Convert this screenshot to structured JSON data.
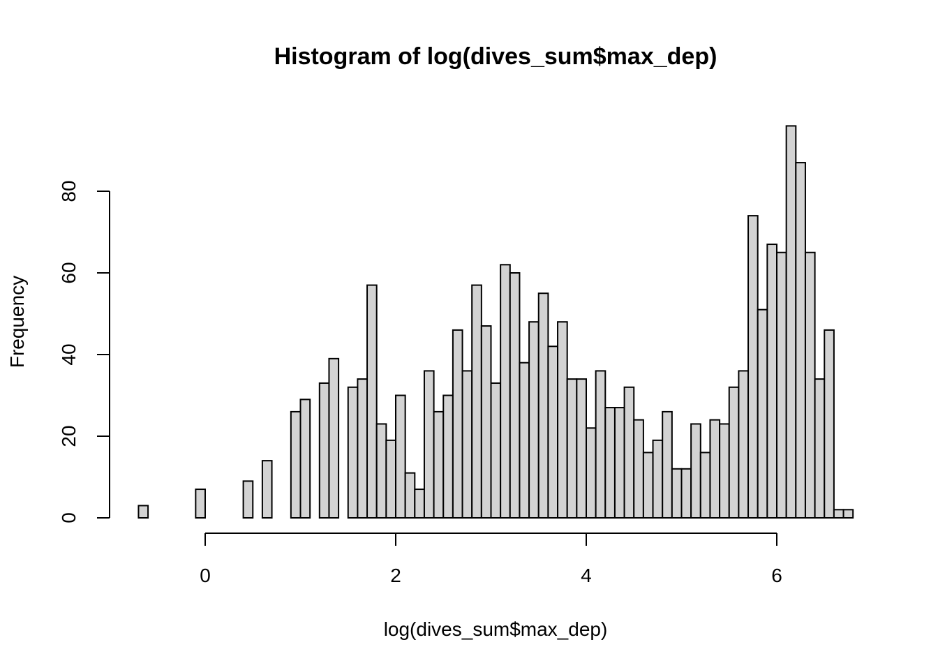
{
  "chart_data": {
    "type": "bar",
    "title": "Histogram of log(dives_sum$max_dep)",
    "xlabel": "log(dives_sum$max_dep)",
    "ylabel": "Frequency",
    "x_ticks": [
      0,
      2,
      4,
      6
    ],
    "y_ticks": [
      0,
      20,
      40,
      60,
      80
    ],
    "x_axis_range": [
      0,
      6
    ],
    "y_axis_range": [
      0,
      80
    ],
    "bin_width": 0.1,
    "bin_start": -0.7,
    "values": [
      3,
      0,
      0,
      0,
      0,
      0,
      7,
      0,
      0,
      0,
      0,
      9,
      0,
      14,
      0,
      0,
      26,
      29,
      0,
      33,
      39,
      0,
      32,
      34,
      57,
      23,
      19,
      30,
      11,
      7,
      36,
      26,
      30,
      46,
      36,
      57,
      47,
      33,
      62,
      60,
      38,
      48,
      55,
      42,
      48,
      34,
      34,
      22,
      36,
      27,
      27,
      32,
      24,
      16,
      19,
      26,
      12,
      12,
      23,
      16,
      24,
      23,
      32,
      36,
      74,
      51,
      67,
      65,
      96,
      87,
      65,
      34,
      46,
      2,
      2
    ],
    "bar_fill": "#d3d3d3",
    "bar_stroke": "#000000",
    "grid": false,
    "legend": "none"
  }
}
